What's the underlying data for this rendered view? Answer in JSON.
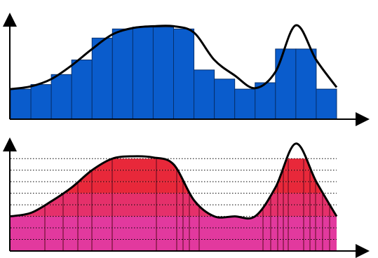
{
  "colors": {
    "background": "#ffffff",
    "axis": "#000000",
    "curve": "#000000",
    "riemann_bar": "#0a5ccc",
    "lebesgue_band_light": "#e2399e",
    "lebesgue_band_dark": "#e8283a",
    "dotted_level": "#000000"
  },
  "chart_data": [
    {
      "type": "bar",
      "bar_count": 16,
      "values": [
        33,
        38,
        49,
        65,
        89,
        99,
        101,
        101,
        99,
        54,
        44,
        33,
        40,
        77,
        77,
        33
      ],
      "ylim": [
        0,
        100
      ],
      "curve": [
        [
          0,
          33
        ],
        [
          1,
          36
        ],
        [
          2,
          44
        ],
        [
          3,
          59
        ],
        [
          4,
          77
        ],
        [
          5,
          93
        ],
        [
          6,
          100
        ],
        [
          7,
          102
        ],
        [
          8,
          102
        ],
        [
          9,
          95
        ],
        [
          10,
          65
        ],
        [
          11,
          48
        ],
        [
          12,
          34
        ],
        [
          13,
          52
        ],
        [
          14,
          103
        ],
        [
          15,
          65
        ],
        [
          16,
          35
        ]
      ]
    },
    {
      "type": "bar",
      "levels": 8,
      "level_values": [
        1,
        2,
        3,
        4,
        5,
        6,
        7,
        8
      ],
      "ylim": [
        0,
        8.5
      ],
      "curve": [
        [
          0,
          3
        ],
        [
          1,
          3.3
        ],
        [
          2,
          4.3
        ],
        [
          3,
          5.5
        ],
        [
          4,
          7.0
        ],
        [
          5,
          8.0
        ],
        [
          6,
          8.2
        ],
        [
          7,
          8.1
        ],
        [
          8,
          7.5
        ],
        [
          9,
          4.4
        ],
        [
          10,
          3.0
        ],
        [
          11,
          3.0
        ],
        [
          12,
          3.0
        ],
        [
          13,
          5.5
        ],
        [
          14,
          9.3
        ],
        [
          15,
          6.0
        ],
        [
          16,
          3
        ]
      ]
    }
  ]
}
